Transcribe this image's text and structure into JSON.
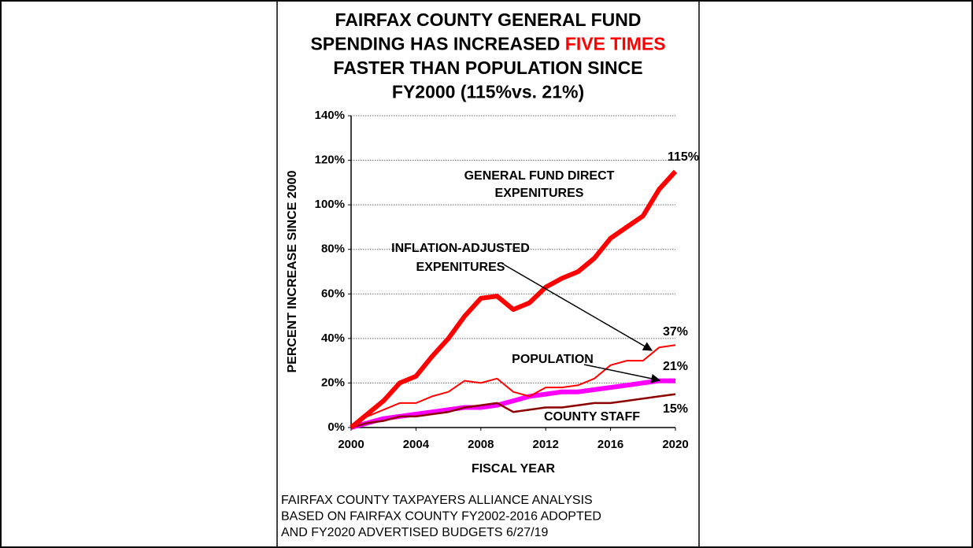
{
  "chart_data": {
    "type": "line",
    "title_lines": [
      "FAIRFAX COUNTY GENERAL FUND",
      "SPENDING HAS INCREASED",
      "FASTER THAN POPULATION SINCE",
      "FY2000 (115%vs. 21%)"
    ],
    "title_highlight": "FIVE TIMES",
    "title_highlight_color": "#ff0000",
    "x_label": "FISCAL YEAR",
    "y_label": "PERCENT INCREASE SINCE 2000",
    "x": [
      2000,
      2001,
      2002,
      2003,
      2004,
      2005,
      2006,
      2007,
      2008,
      2009,
      2010,
      2011,
      2012,
      2013,
      2014,
      2015,
      2016,
      2017,
      2018,
      2019,
      2020
    ],
    "xlim": [
      2000,
      2020
    ],
    "xticks": [
      2000,
      2004,
      2008,
      2012,
      2016,
      2020
    ],
    "ylim": [
      0,
      140
    ],
    "yticks": [
      {
        "value": 0,
        "label": "0%"
      },
      {
        "value": 20,
        "label": "20%"
      },
      {
        "value": 40,
        "label": "40%"
      },
      {
        "value": 60,
        "label": "60%"
      },
      {
        "value": 80,
        "label": "80%"
      },
      {
        "value": 100,
        "label": "100%"
      },
      {
        "value": 120,
        "label": "120%"
      },
      {
        "value": 140,
        "label": "140%"
      }
    ],
    "grid": true,
    "series": [
      {
        "name": "GENERAL FUND DIRECT EXPENITURES",
        "label_lines": [
          "GENERAL FUND DIRECT",
          "EXPENITURES"
        ],
        "color": "#ff0000",
        "width": 6,
        "values": [
          0,
          6,
          12,
          20,
          23,
          32,
          40,
          50,
          58,
          59,
          53,
          56,
          63,
          67,
          70,
          76,
          85,
          90,
          95,
          107,
          115
        ],
        "value_labels": [
          null,
          null,
          null,
          null,
          null,
          null,
          null,
          null,
          null,
          null,
          null,
          null,
          null,
          null,
          null,
          null,
          null,
          null,
          null,
          null,
          "115%"
        ]
      },
      {
        "name": "INFLATION-ADJUSTED EXPENITURES",
        "label_lines": [
          "INFLATION-ADJUSTED",
          "EXPENITURES"
        ],
        "color": "#ff0000",
        "width": 2,
        "values": [
          0,
          5,
          8,
          11,
          11,
          14,
          16,
          21,
          20,
          22,
          16,
          14,
          18,
          18,
          19,
          22,
          28,
          30,
          30,
          36,
          37
        ],
        "value_labels": [
          null,
          null,
          null,
          null,
          null,
          null,
          null,
          null,
          null,
          null,
          null,
          null,
          null,
          null,
          null,
          null,
          null,
          null,
          null,
          null,
          "37%"
        ]
      },
      {
        "name": "POPULATION",
        "label_lines": [
          "POPULATION"
        ],
        "color": "#ff00ff",
        "width": 6,
        "values": [
          0,
          2,
          4,
          5,
          6,
          7,
          8,
          9,
          9,
          10,
          12,
          14,
          15,
          16,
          16,
          17,
          18,
          19,
          20,
          21,
          21
        ],
        "value_labels": [
          null,
          null,
          null,
          null,
          null,
          null,
          null,
          null,
          null,
          null,
          null,
          null,
          null,
          null,
          null,
          null,
          null,
          null,
          null,
          null,
          "21%"
        ]
      },
      {
        "name": "COUNTY STAFF",
        "label_lines": [
          "COUNTY STAFF"
        ],
        "color": "#8b0000",
        "width": 2.5,
        "values": [
          0,
          2,
          3,
          5,
          5,
          6,
          7,
          9,
          10,
          11,
          7,
          8,
          9,
          9,
          10,
          11,
          11,
          12,
          13,
          14,
          15
        ],
        "value_labels": [
          null,
          null,
          null,
          null,
          null,
          null,
          null,
          null,
          null,
          null,
          null,
          null,
          null,
          null,
          null,
          null,
          null,
          null,
          null,
          null,
          "15%"
        ]
      }
    ],
    "footer_lines": [
      "FAIRFAX COUNTY TAXPAYERS ALLIANCE ANALYSIS",
      "BASED ON  FAIRFAX COUNTY FY2002-2016 ADOPTED",
      "AND FY2020 ADVERTISED BUDGETS  6/27/19"
    ]
  }
}
